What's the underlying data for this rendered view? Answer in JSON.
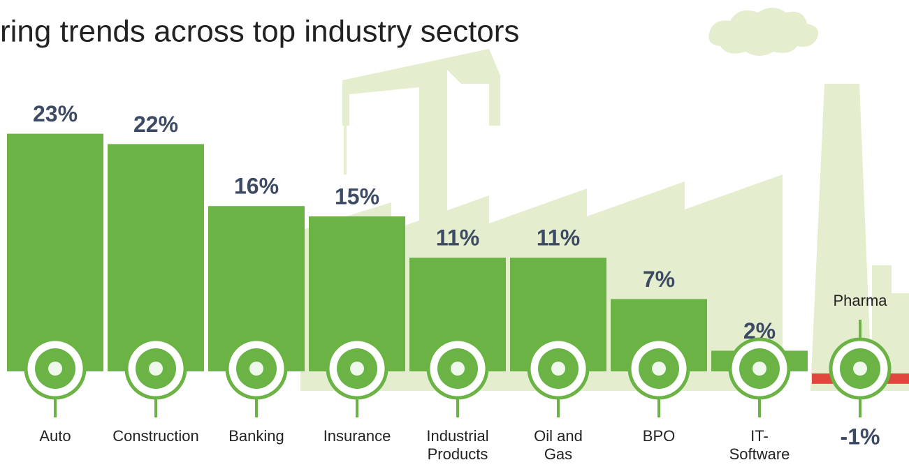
{
  "chart_data": {
    "type": "bar",
    "title": "ring trends across top industry sectors",
    "categories": [
      "Auto",
      "Construction",
      "Banking",
      "Insurance",
      "Industrial Products",
      "Oil and Gas",
      "BPO",
      "IT-Software",
      "Pharma"
    ],
    "values": [
      23,
      22,
      16,
      15,
      11,
      11,
      7,
      2,
      -1
    ],
    "value_labels": [
      "23%",
      "22%",
      "16%",
      "15%",
      "11%",
      "11%",
      "7%",
      "2%",
      "-1%"
    ],
    "color": "#6ab344",
    "negative_color": "#e0463c"
  }
}
